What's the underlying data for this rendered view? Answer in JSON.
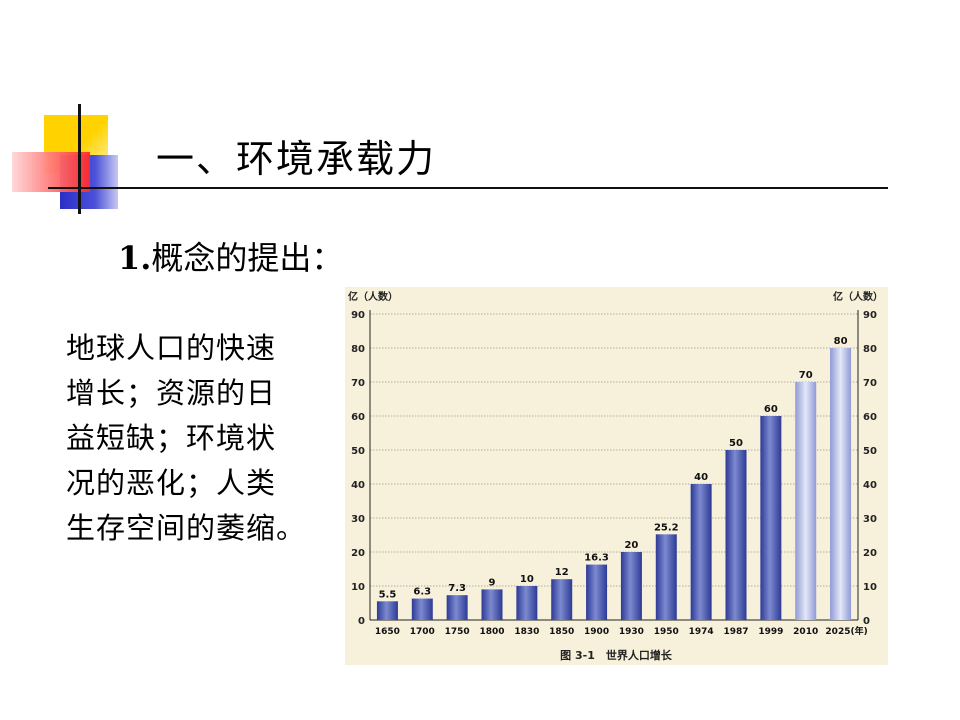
{
  "slide": {
    "title": "一、环境承载力",
    "subtitle_num": "1.",
    "subtitle_text": "概念的提出：",
    "paragraph_lines": [
      "地球人口的快速",
      "增长；资源的日",
      "益短缺；环境状",
      "况的恶化；人类",
      "生存空间的萎缩。"
    ]
  },
  "colors": {
    "bar": "#3a4aa8",
    "chart_bg": "#f7f1dc",
    "title": "#000000"
  },
  "chart_data": {
    "type": "bar",
    "categories": [
      "1650",
      "1700",
      "1750",
      "1800",
      "1830",
      "1850",
      "1900",
      "1930",
      "1950",
      "1974",
      "1987",
      "1999",
      "2010",
      "2025(年)"
    ],
    "values": [
      5.5,
      6.3,
      7.3,
      9,
      10,
      12,
      16.3,
      20,
      25.2,
      40,
      50,
      60,
      70,
      80
    ],
    "value_labels": [
      "5.5",
      "6.3",
      "7.3",
      "9",
      "10",
      "12",
      "16.3",
      "20",
      "25.2",
      "40",
      "50",
      "60",
      "70",
      "80"
    ],
    "ylabel_left": "亿（人数）",
    "ylabel_right": "亿（人数）",
    "yticks": [
      "0",
      "10",
      "20",
      "30",
      "40",
      "50",
      "60",
      "70",
      "80",
      "90"
    ],
    "ylim": [
      0,
      90
    ],
    "grid": true,
    "caption": "图 3-1　世界人口增长"
  }
}
